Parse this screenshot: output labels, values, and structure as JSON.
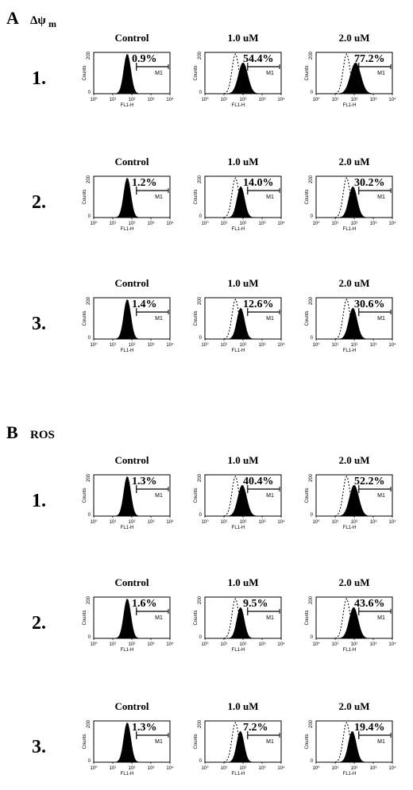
{
  "panels": [
    {
      "letter": "A",
      "title_main": "Δψ",
      "title_sub": "m",
      "columns": [
        "Control",
        "1.0 uM",
        "2.0 uM"
      ],
      "rows": [
        {
          "label": "1.",
          "percents": [
            "0.9%",
            "54.4%",
            "77.2%"
          ]
        },
        {
          "label": "2.",
          "percents": [
            "1.2%",
            "14.0%",
            "30.2%"
          ]
        },
        {
          "label": "3.",
          "percents": [
            "1.4%",
            "12.6%",
            "30.6%"
          ]
        }
      ]
    },
    {
      "letter": "B",
      "title_main": "ROS",
      "title_sub": "",
      "columns": [
        "Control",
        "1.0 uM",
        "2.0 uM"
      ],
      "rows": [
        {
          "label": "1.",
          "percents": [
            "1.3%",
            "40.4%",
            "52.2%"
          ]
        },
        {
          "label": "2.",
          "percents": [
            "1.6%",
            "9.5%",
            "43.6%"
          ]
        },
        {
          "label": "3.",
          "percents": [
            "1.3%",
            "7.2%",
            "19.4%"
          ]
        }
      ]
    }
  ],
  "histogram_labels": {
    "ylabel": "Counts",
    "xlabel": "FL1-H",
    "gate": "M1",
    "y_tick_top": "200",
    "y_tick_zero": "0",
    "x_ticks": [
      "10⁰",
      "10¹",
      "10²",
      "10³",
      "10⁴"
    ]
  },
  "chart_data": [
    {
      "type": "histogram",
      "panel": "A",
      "measure": "Δψm",
      "x_scale": "log",
      "xlim": [
        1,
        10000
      ],
      "ylim": [
        0,
        200
      ],
      "xlabel": "FL1-H",
      "ylabel": "Counts",
      "gate": "M1",
      "categories": [
        "Control",
        "1.0 uM",
        "2.0 uM"
      ],
      "series": [
        {
          "name": "1.",
          "values": [
            0.9,
            54.4,
            77.2
          ]
        },
        {
          "name": "2.",
          "values": [
            1.2,
            14.0,
            30.2
          ]
        },
        {
          "name": "3.",
          "values": [
            1.4,
            12.6,
            30.6
          ]
        }
      ]
    },
    {
      "type": "histogram",
      "panel": "B",
      "measure": "ROS",
      "x_scale": "log",
      "xlim": [
        1,
        10000
      ],
      "ylim": [
        0,
        200
      ],
      "xlabel": "FL1-H",
      "ylabel": "Counts",
      "gate": "M1",
      "categories": [
        "Control",
        "1.0 uM",
        "2.0 uM"
      ],
      "series": [
        {
          "name": "1.",
          "values": [
            1.3,
            40.4,
            52.2
          ]
        },
        {
          "name": "2.",
          "values": [
            1.6,
            9.5,
            43.6
          ]
        },
        {
          "name": "3.",
          "values": [
            1.3,
            7.2,
            19.4
          ]
        }
      ]
    }
  ]
}
